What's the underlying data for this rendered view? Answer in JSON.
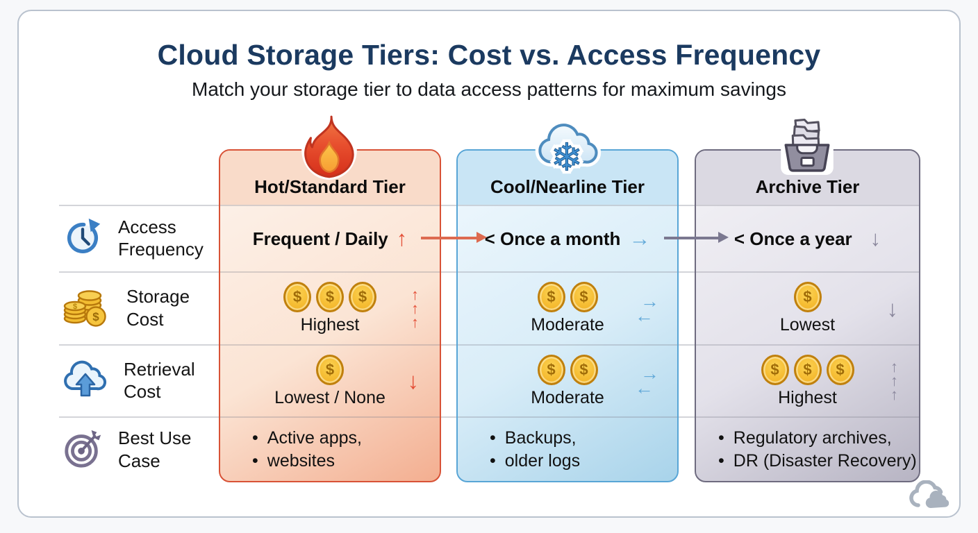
{
  "header": {
    "title": "Cloud Storage Tiers: Cost vs. Access Frequency",
    "subtitle": "Match your storage tier to data access patterns for maximum savings"
  },
  "icons": {
    "up": "↑",
    "down": "↓",
    "right": "→",
    "left": "←",
    "dollar": "$",
    "bullet": "•",
    "snowflake": "❄"
  },
  "row_labels": [
    {
      "line1": "Access",
      "line2": "Frequency",
      "icon": "clock-refresh-icon"
    },
    {
      "line1": "Storage",
      "line2": "Cost",
      "icon": "coin-stack-icon"
    },
    {
      "line1": "Retrieval",
      "line2": "Cost",
      "icon": "cloud-upload-icon"
    },
    {
      "line1": "Best Use",
      "line2": "Case",
      "icon": "target-icon"
    }
  ],
  "tiers": [
    {
      "name": "Hot/Standard Tier",
      "icon": "flame-icon",
      "colors": {
        "border": "#d85236",
        "header_bg": "#f9dbc9",
        "body_top": "#fdf3ec",
        "body_mid": "#fbe4d4",
        "body_bottom": "#f3ae90",
        "trend": "#e44f37"
      },
      "cells": {
        "access": {
          "text": "Frequent / Daily",
          "trend": "up"
        },
        "storage": {
          "coins": 3,
          "label": "Highest",
          "trend": "triple-up"
        },
        "retrieval": {
          "coins": 1,
          "label": "Lowest / None",
          "trend": "down"
        },
        "use_cases": [
          "Active apps,",
          "websites"
        ]
      }
    },
    {
      "name": "Cool/Nearline Tier",
      "icon": "snowflake-cloud-icon",
      "colors": {
        "border": "#58a5d6",
        "header_bg": "#c9e5f5",
        "body_top": "#f0f8fd",
        "body_mid": "#d9edf8",
        "body_bottom": "#a8d3ea",
        "trend": "#64aad9"
      },
      "cells": {
        "access": {
          "text": "< Once a month",
          "trend": "right"
        },
        "storage": {
          "coins": 2,
          "label": "Moderate",
          "trend": "swap"
        },
        "retrieval": {
          "coins": 2,
          "label": "Moderate",
          "trend": "swap"
        },
        "use_cases": [
          "Backups,",
          "older logs"
        ]
      }
    },
    {
      "name": "Archive Tier",
      "icon": "archive-box-icon",
      "colors": {
        "border": "#6e6b7f",
        "header_bg": "#dbd9e2",
        "body_top": "#f3f2f6",
        "body_mid": "#e3e1ea",
        "body_bottom": "#b7b4c3",
        "trend": "#8b889d"
      },
      "cells": {
        "access": {
          "text": "< Once a year",
          "trend": "down"
        },
        "storage": {
          "coins": 1,
          "label": "Lowest",
          "trend": "down"
        },
        "retrieval": {
          "coins": 3,
          "label": "Highest",
          "trend": "triple-up"
        },
        "use_cases": [
          "Regulatory archives,",
          "DR (Disaster Recovery)"
        ]
      }
    }
  ],
  "connectors": [
    {
      "from": "Hot/Standard Tier",
      "to": "Cool/Nearline Tier",
      "color": "#dd6a50"
    },
    {
      "from": "Cool/Nearline Tier",
      "to": "Archive Tier",
      "color": "#7b7890"
    }
  ]
}
